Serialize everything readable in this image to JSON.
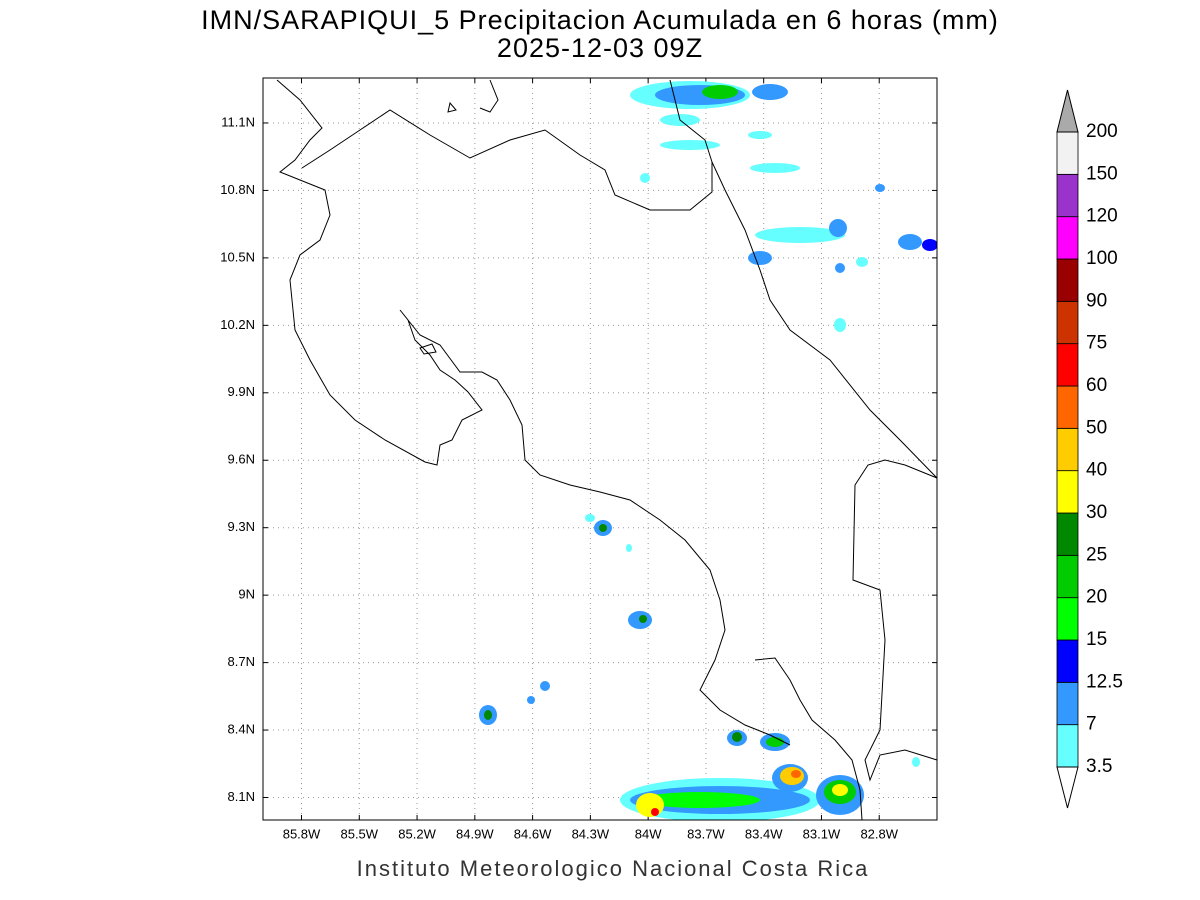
{
  "title": "IMN/SARAPIQUI_5 Precipitacion Acumulada en 6 horas (mm)",
  "subtitle": "2025-12-03 09Z",
  "map": {
    "lat_range": [
      8.0,
      11.3
    ],
    "lon_range": [
      -86.0,
      -82.5
    ],
    "grid": true,
    "lat_ticks": [
      {
        "value": 8.1,
        "label": "8.1N"
      },
      {
        "value": 8.4,
        "label": "8.4N"
      },
      {
        "value": 8.7,
        "label": "8.7N"
      },
      {
        "value": 9.0,
        "label": "9N"
      },
      {
        "value": 9.3,
        "label": "9.3N"
      },
      {
        "value": 9.6,
        "label": "9.6N"
      },
      {
        "value": 9.9,
        "label": "9.9N"
      },
      {
        "value": 10.2,
        "label": "10.2N"
      },
      {
        "value": 10.5,
        "label": "10.5N"
      },
      {
        "value": 10.8,
        "label": "10.8N"
      },
      {
        "value": 11.1,
        "label": "11.1N"
      }
    ],
    "lon_ticks": [
      {
        "value": -85.8,
        "label": "85.8W"
      },
      {
        "value": -85.5,
        "label": "85.5W"
      },
      {
        "value": -85.2,
        "label": "85.2W"
      },
      {
        "value": -84.9,
        "label": "84.9W"
      },
      {
        "value": -84.6,
        "label": "84.6W"
      },
      {
        "value": -84.3,
        "label": "84.3W"
      },
      {
        "value": -84.0,
        "label": "84W"
      },
      {
        "value": -83.7,
        "label": "83.7W"
      },
      {
        "value": -83.4,
        "label": "83.4W"
      },
      {
        "value": -83.1,
        "label": "83.1W"
      },
      {
        "value": -82.8,
        "label": "82.8W"
      }
    ]
  },
  "colorbar": {
    "levels": [
      3.5,
      7,
      12.5,
      15,
      20,
      25,
      30,
      40,
      50,
      60,
      75,
      90,
      100,
      120,
      150,
      200
    ],
    "colors": [
      "#66ffff",
      "#3399ff",
      "#0000ff",
      "#00ff00",
      "#00cc00",
      "#008800",
      "#ffff00",
      "#ffcc00",
      "#ff6600",
      "#ff0000",
      "#cc3300",
      "#990000",
      "#ff00ff",
      "#9933cc",
      "#f2f2f2"
    ],
    "under_color": "#ffffff",
    "over_color": "#aaaaaa"
  },
  "footer": "Instituto Meteorologico Nacional Costa Rica"
}
